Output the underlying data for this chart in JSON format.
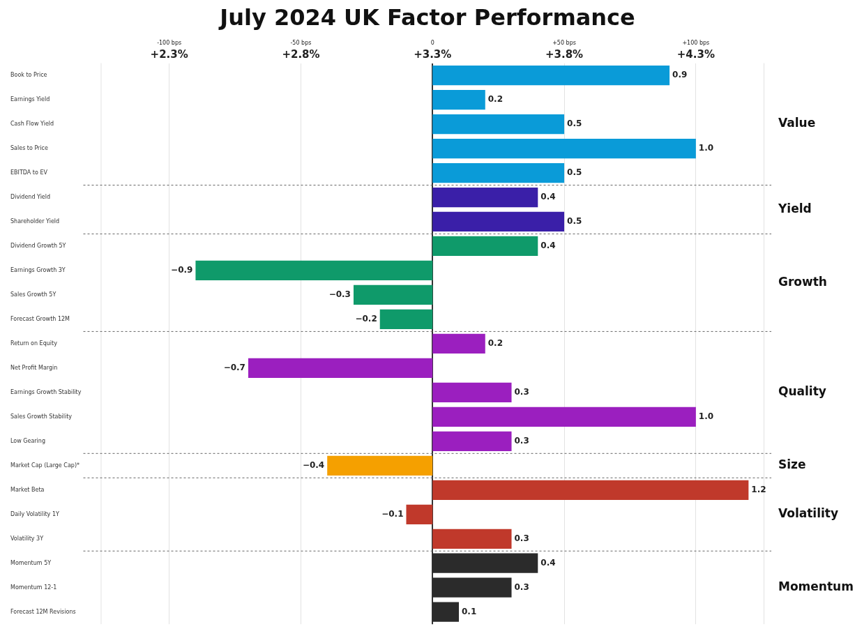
{
  "chart_data": {
    "type": "bar",
    "orientation": "horizontal",
    "title": "July 2024 UK Factor Performance",
    "categories": [
      "Book to Price",
      "Earnings Yield",
      "Cash Flow Yield",
      "Sales to Price",
      "EBITDA to EV",
      "Dividend Yield",
      "Shareholder Yield",
      "Dividend Growth 5Y",
      "Earnings Growth 3Y",
      "Sales Growth 5Y",
      "Forecast Growth 12M",
      "Return on Equity",
      "Net Profit Margin",
      "Earnings Growth Stability",
      "Sales Growth Stability",
      "Low Gearing",
      "Market Cap (Large Cap)*",
      "Market Beta",
      "Daily Volatility 1Y",
      "Volatility 3Y",
      "Momentum 5Y",
      "Momentum 12-1",
      "Forecast 12M Revisions"
    ],
    "series": [
      {
        "name": "Value",
        "color": "#0a9bd8",
        "values": [
          0.9,
          0.2,
          0.5,
          1.0,
          0.5,
          null,
          null,
          null,
          null,
          null,
          null,
          null,
          null,
          null,
          null,
          null,
          null,
          null,
          null,
          null,
          null,
          null,
          null
        ],
        "base": [
          3.3,
          3.3,
          3.3,
          3.3,
          3.3,
          null,
          null,
          null,
          null,
          null,
          null,
          null,
          null,
          null,
          null,
          null,
          null,
          null,
          null,
          null,
          null,
          null,
          null
        ],
        "value_labels": [
          "0.9",
          "0.2",
          "0.5",
          "1.0",
          "0.5",
          null,
          null,
          null,
          null,
          null,
          null,
          null,
          null,
          null,
          null,
          null,
          null,
          null,
          null,
          null,
          null,
          null,
          null
        ]
      },
      {
        "name": "Yield",
        "color": "#3a1fa8",
        "values": [
          null,
          null,
          null,
          null,
          null,
          0.4,
          0.5,
          null,
          null,
          null,
          null,
          null,
          null,
          null,
          null,
          null,
          null,
          null,
          null,
          null,
          null,
          null,
          null
        ],
        "base": [
          null,
          null,
          null,
          null,
          null,
          3.3,
          3.3,
          null,
          null,
          null,
          null,
          null,
          null,
          null,
          null,
          null,
          null,
          null,
          null,
          null,
          null,
          null,
          null
        ],
        "value_labels": [
          null,
          null,
          null,
          null,
          null,
          "0.4",
          "0.5",
          null,
          null,
          null,
          null,
          null,
          null,
          null,
          null,
          null,
          null,
          null,
          null,
          null,
          null,
          null,
          null
        ]
      },
      {
        "name": "Growth",
        "color": "#0f9a6a",
        "values": [
          null,
          null,
          null,
          null,
          null,
          null,
          null,
          0.4,
          -0.9,
          -0.3,
          -0.2,
          null,
          null,
          null,
          null,
          null,
          null,
          null,
          null,
          null,
          null,
          null,
          null
        ],
        "base": [
          null,
          null,
          null,
          null,
          null,
          null,
          null,
          3.3,
          3.3,
          3.3,
          3.3,
          null,
          null,
          null,
          null,
          null,
          null,
          null,
          null,
          null,
          null,
          null,
          null
        ],
        "value_labels": [
          null,
          null,
          null,
          null,
          null,
          null,
          null,
          "0.4",
          "−0.9",
          "−0.3",
          "−0.2",
          null,
          null,
          null,
          null,
          null,
          null,
          null,
          null,
          null,
          null,
          null,
          null
        ]
      },
      {
        "name": "Quality",
        "color": "#9b1fbf",
        "values": [
          null,
          null,
          null,
          null,
          null,
          null,
          null,
          null,
          null,
          null,
          null,
          0.2,
          -0.7,
          0.3,
          1.0,
          0.3,
          null,
          null,
          null,
          null,
          null,
          null,
          null
        ],
        "base": [
          null,
          null,
          null,
          null,
          null,
          null,
          null,
          null,
          null,
          null,
          null,
          3.3,
          3.3,
          3.3,
          3.3,
          3.3,
          null,
          null,
          null,
          null,
          null,
          null,
          null
        ],
        "value_labels": [
          null,
          null,
          null,
          null,
          null,
          null,
          null,
          null,
          null,
          null,
          null,
          "0.2",
          "−0.7",
          "0.3",
          "1.0",
          "0.3",
          null,
          null,
          null,
          null,
          null,
          null,
          null
        ]
      },
      {
        "name": "Size",
        "color": "#f5a000",
        "values": [
          null,
          null,
          null,
          null,
          null,
          null,
          null,
          null,
          null,
          null,
          null,
          null,
          null,
          null,
          null,
          null,
          -0.4,
          null,
          null,
          null,
          null,
          null,
          null
        ],
        "base": [
          null,
          null,
          null,
          null,
          null,
          null,
          null,
          null,
          null,
          null,
          null,
          null,
          null,
          null,
          null,
          null,
          3.3,
          null,
          null,
          null,
          null,
          null,
          null
        ],
        "value_labels": [
          null,
          null,
          null,
          null,
          null,
          null,
          null,
          null,
          null,
          null,
          null,
          null,
          null,
          null,
          null,
          null,
          "−0.4",
          null,
          null,
          null,
          null,
          null,
          null
        ]
      },
      {
        "name": "Volatility",
        "color": "#c0392b",
        "values": [
          null,
          null,
          null,
          null,
          null,
          null,
          null,
          null,
          null,
          null,
          null,
          null,
          null,
          null,
          null,
          null,
          null,
          1.2,
          -0.1,
          0.3,
          null,
          null,
          null
        ],
        "base": [
          null,
          null,
          null,
          null,
          null,
          null,
          null,
          null,
          null,
          null,
          null,
          null,
          null,
          null,
          null,
          null,
          null,
          3.3,
          3.3,
          3.3,
          null,
          null,
          null
        ],
        "value_labels": [
          null,
          null,
          null,
          null,
          null,
          null,
          null,
          null,
          null,
          null,
          null,
          null,
          null,
          null,
          null,
          null,
          null,
          "1.2",
          "−0.1",
          "0.3",
          null,
          null,
          null
        ]
      },
      {
        "name": "Momentum",
        "color": "#2b2b2b",
        "values": [
          null,
          null,
          null,
          null,
          null,
          null,
          null,
          null,
          null,
          null,
          null,
          null,
          null,
          null,
          null,
          null,
          null,
          null,
          null,
          null,
          0.4,
          0.3,
          0.1
        ],
        "base": [
          null,
          null,
          null,
          null,
          null,
          null,
          null,
          null,
          null,
          null,
          null,
          null,
          null,
          null,
          null,
          null,
          null,
          null,
          null,
          null,
          3.3,
          3.3,
          3.3
        ],
        "value_labels": [
          null,
          null,
          null,
          null,
          null,
          null,
          null,
          null,
          null,
          null,
          null,
          null,
          null,
          null,
          null,
          null,
          null,
          null,
          null,
          null,
          "0.4",
          "0.3",
          "0.1"
        ]
      }
    ],
    "xlim": [
      2.04,
      4.56
    ],
    "xticks": [
      {
        "value": 2.3,
        "label": "+2.3%"
      },
      {
        "value": 2.8,
        "label": "+2.8%"
      },
      {
        "value": 3.3,
        "label": "+3.3%"
      },
      {
        "value": 3.8,
        "label": "+3.8%"
      },
      {
        "value": 4.3,
        "label": "+4.3%"
      }
    ],
    "x2lim": [
      -126,
      126
    ],
    "x2ticks": [
      {
        "value": -100,
        "label": "-100 bps"
      },
      {
        "value": -50,
        "label": "-50 bps"
      },
      0,
      {
        "value": 50,
        "label": "+50 bps"
      },
      {
        "value": 100,
        "label": "+100 bps"
      }
    ],
    "grid": "x",
    "legend": false
  }
}
